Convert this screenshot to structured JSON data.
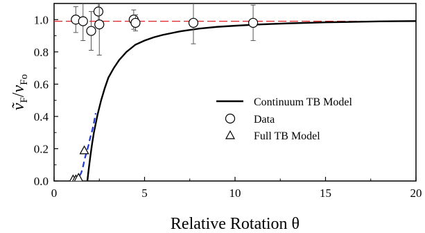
{
  "chart_data": {
    "type": "scatter",
    "xlabel": "Relative Rotation θ",
    "ylabel_parts": {
      "a": "ṽ",
      "a_sub": "F",
      "slash": "/",
      "b": "v",
      "b_sub": "Fo"
    },
    "xlim": [
      0,
      20
    ],
    "ylim": [
      0,
      1.1
    ],
    "xticks": [
      0,
      5,
      10,
      15,
      20
    ],
    "yticks": [
      0.0,
      0.2,
      0.4,
      0.6,
      0.8,
      1.0
    ],
    "ytick_labels": [
      "0.0",
      "0.2",
      "0.4",
      "0.6",
      "0.8",
      "1.0"
    ],
    "grid": false,
    "legend_position": "center-right",
    "series": [
      {
        "name": "Continuum TB Model",
        "kind": "line",
        "color": "#000000",
        "style": "solid",
        "x": [
          1.84,
          1.9,
          2.0,
          2.1,
          2.2,
          2.4,
          2.6,
          2.8,
          3.0,
          3.3,
          3.6,
          4.0,
          4.5,
          5.0,
          5.5,
          6.0,
          7.0,
          8.0,
          9.0,
          10.0,
          11.0,
          12.0,
          13.0,
          14.0,
          15.0,
          16.0,
          17.0,
          18.0,
          19.0,
          20.0
        ],
        "y": [
          0.0,
          0.06,
          0.15,
          0.23,
          0.3,
          0.41,
          0.5,
          0.575,
          0.64,
          0.7,
          0.75,
          0.8,
          0.845,
          0.87,
          0.89,
          0.905,
          0.928,
          0.944,
          0.955,
          0.962,
          0.968,
          0.973,
          0.977,
          0.98,
          0.983,
          0.985,
          0.987,
          0.989,
          0.99,
          0.991
        ]
      },
      {
        "name": "Data",
        "kind": "points-errorbars",
        "marker": "circle",
        "color": "#000000",
        "x": [
          1.2,
          1.6,
          2.05,
          2.45,
          2.5,
          4.4,
          4.5,
          7.7,
          11.0
        ],
        "y": [
          1.0,
          0.99,
          0.93,
          1.05,
          0.97,
          1.0,
          0.98,
          0.98,
          0.98
        ],
        "yerr": [
          0.08,
          0.12,
          0.12,
          0.06,
          0.19,
          0.06,
          0.05,
          0.13,
          0.11
        ]
      },
      {
        "name": "Full TB Model",
        "kind": "points",
        "marker": "triangle",
        "color": "#000000",
        "x": [
          1.05,
          1.2,
          1.35,
          1.67
        ],
        "y": [
          0.01,
          0.01,
          0.02,
          0.19
        ]
      },
      {
        "name": "",
        "kind": "line",
        "color": "#1f35d6",
        "style": "dashed",
        "x": [
          1.05,
          1.2,
          1.35,
          1.5,
          1.6,
          1.7,
          1.8,
          1.9,
          2.0,
          2.1,
          2.2,
          2.3
        ],
        "y": [
          0.0,
          0.005,
          0.02,
          0.05,
          0.09,
          0.14,
          0.18,
          0.22,
          0.27,
          0.31,
          0.36,
          0.42
        ]
      },
      {
        "name": "",
        "kind": "line",
        "color": "#e02020",
        "style": "dashed",
        "x": [
          0,
          20
        ],
        "y": [
          0.99,
          0.99
        ]
      }
    ]
  }
}
